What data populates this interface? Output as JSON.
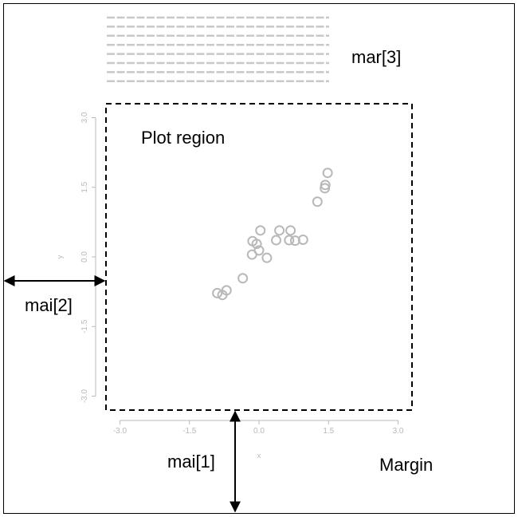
{
  "labels": {
    "plot_region": "Plot region",
    "mar3": "mar[3]",
    "mai1": "mai[1]",
    "mai2": "mai[2]",
    "margin": "Margin"
  },
  "colors": {
    "line": "#000000",
    "grey": "#b8b8b8",
    "text_lines": "#c8c8c8"
  },
  "chart_data": {
    "type": "scatter",
    "xlabel": "x",
    "ylabel": "y",
    "xlim": [
      -3.3,
      3.3
    ],
    "ylim": [
      -3.3,
      3.3
    ],
    "x_ticks": [
      -3.0,
      -1.5,
      0.0,
      1.5,
      3.0
    ],
    "x_tick_labels": [
      "-3.0",
      "-1.5",
      "0.0",
      "1.5",
      "3.0"
    ],
    "y_ticks": [
      -3.0,
      -1.5,
      0.0,
      1.5,
      3.0
    ],
    "y_tick_labels": [
      "-3.0",
      "-1.5",
      "0.0",
      "1.5",
      "3.0"
    ],
    "points": [
      {
        "x": -0.9,
        "y": -0.78
      },
      {
        "x": -0.79,
        "y": -0.82
      },
      {
        "x": -0.7,
        "y": -0.72
      },
      {
        "x": -0.35,
        "y": -0.46
      },
      {
        "x": -0.15,
        "y": 0.05
      },
      {
        "x": -0.14,
        "y": 0.34
      },
      {
        "x": -0.05,
        "y": 0.28
      },
      {
        "x": 0.0,
        "y": 0.14
      },
      {
        "x": 0.03,
        "y": 0.57
      },
      {
        "x": 0.17,
        "y": -0.02
      },
      {
        "x": 0.37,
        "y": 0.36
      },
      {
        "x": 0.44,
        "y": 0.57
      },
      {
        "x": 0.65,
        "y": 0.36
      },
      {
        "x": 0.68,
        "y": 0.57
      },
      {
        "x": 0.78,
        "y": 0.35
      },
      {
        "x": 0.95,
        "y": 0.37
      },
      {
        "x": 1.26,
        "y": 1.19
      },
      {
        "x": 1.42,
        "y": 1.48
      },
      {
        "x": 1.43,
        "y": 1.55
      },
      {
        "x": 1.48,
        "y": 1.81
      }
    ]
  }
}
